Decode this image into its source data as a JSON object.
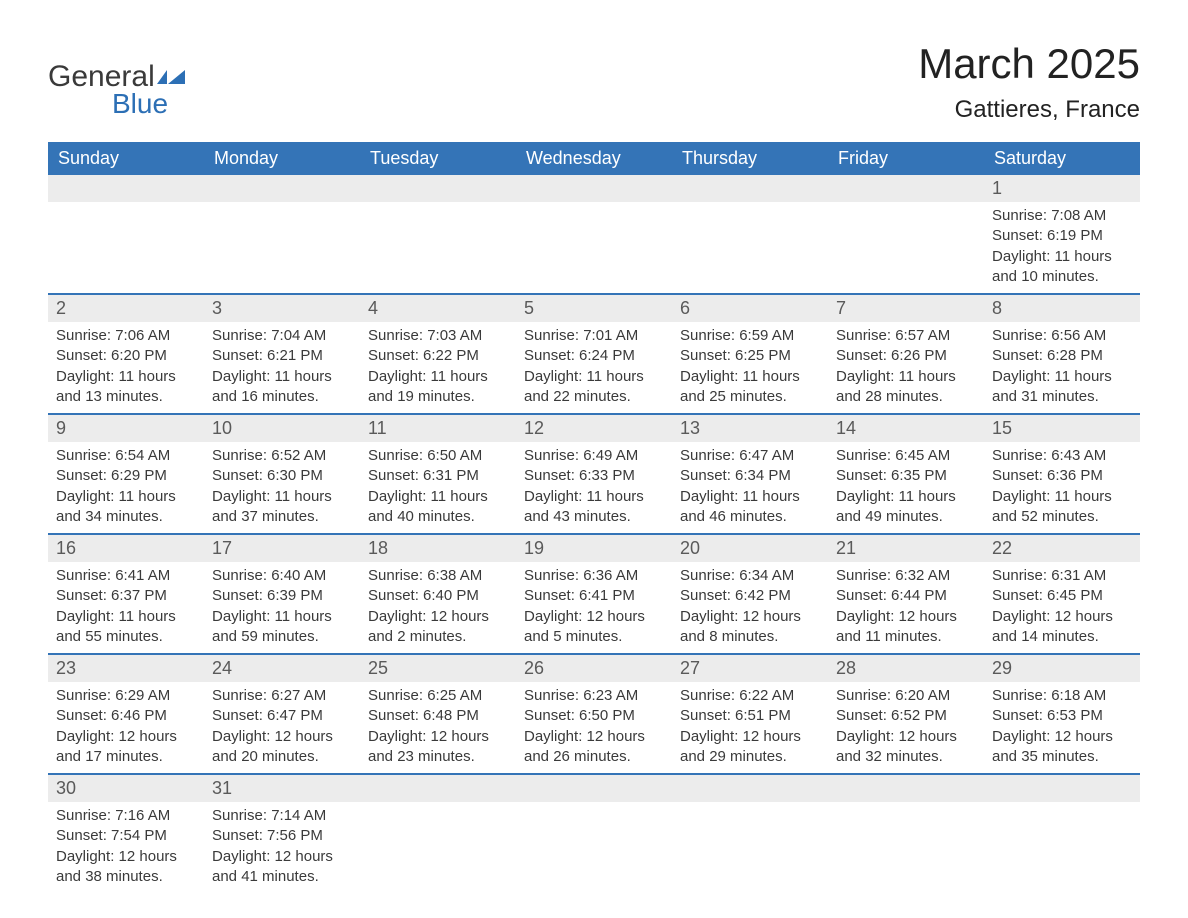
{
  "brand": {
    "text_general": "General",
    "text_blue": "Blue",
    "icon_color": "#2c6fb5"
  },
  "title": "March 2025",
  "location": "Gattieres, France",
  "colors": {
    "header_bg": "#3474b7",
    "header_text": "#ffffff",
    "daynum_bg": "#ececec",
    "daynum_text": "#5a5a5a",
    "body_text": "#3a3a3a",
    "row_divider": "#3474b7",
    "background": "#ffffff"
  },
  "typography": {
    "title_fontsize": 42,
    "location_fontsize": 24,
    "weekday_fontsize": 18,
    "daynum_fontsize": 18,
    "cell_fontsize": 15,
    "font_family": "Arial"
  },
  "weekdays": [
    "Sunday",
    "Monday",
    "Tuesday",
    "Wednesday",
    "Thursday",
    "Friday",
    "Saturday"
  ],
  "weeks": [
    [
      null,
      null,
      null,
      null,
      null,
      null,
      {
        "day": "1",
        "sunrise": "7:08 AM",
        "sunset": "6:19 PM",
        "daylight": "11 hours and 10 minutes."
      }
    ],
    [
      {
        "day": "2",
        "sunrise": "7:06 AM",
        "sunset": "6:20 PM",
        "daylight": "11 hours and 13 minutes."
      },
      {
        "day": "3",
        "sunrise": "7:04 AM",
        "sunset": "6:21 PM",
        "daylight": "11 hours and 16 minutes."
      },
      {
        "day": "4",
        "sunrise": "7:03 AM",
        "sunset": "6:22 PM",
        "daylight": "11 hours and 19 minutes."
      },
      {
        "day": "5",
        "sunrise": "7:01 AM",
        "sunset": "6:24 PM",
        "daylight": "11 hours and 22 minutes."
      },
      {
        "day": "6",
        "sunrise": "6:59 AM",
        "sunset": "6:25 PM",
        "daylight": "11 hours and 25 minutes."
      },
      {
        "day": "7",
        "sunrise": "6:57 AM",
        "sunset": "6:26 PM",
        "daylight": "11 hours and 28 minutes."
      },
      {
        "day": "8",
        "sunrise": "6:56 AM",
        "sunset": "6:28 PM",
        "daylight": "11 hours and 31 minutes."
      }
    ],
    [
      {
        "day": "9",
        "sunrise": "6:54 AM",
        "sunset": "6:29 PM",
        "daylight": "11 hours and 34 minutes."
      },
      {
        "day": "10",
        "sunrise": "6:52 AM",
        "sunset": "6:30 PM",
        "daylight": "11 hours and 37 minutes."
      },
      {
        "day": "11",
        "sunrise": "6:50 AM",
        "sunset": "6:31 PM",
        "daylight": "11 hours and 40 minutes."
      },
      {
        "day": "12",
        "sunrise": "6:49 AM",
        "sunset": "6:33 PM",
        "daylight": "11 hours and 43 minutes."
      },
      {
        "day": "13",
        "sunrise": "6:47 AM",
        "sunset": "6:34 PM",
        "daylight": "11 hours and 46 minutes."
      },
      {
        "day": "14",
        "sunrise": "6:45 AM",
        "sunset": "6:35 PM",
        "daylight": "11 hours and 49 minutes."
      },
      {
        "day": "15",
        "sunrise": "6:43 AM",
        "sunset": "6:36 PM",
        "daylight": "11 hours and 52 minutes."
      }
    ],
    [
      {
        "day": "16",
        "sunrise": "6:41 AM",
        "sunset": "6:37 PM",
        "daylight": "11 hours and 55 minutes."
      },
      {
        "day": "17",
        "sunrise": "6:40 AM",
        "sunset": "6:39 PM",
        "daylight": "11 hours and 59 minutes."
      },
      {
        "day": "18",
        "sunrise": "6:38 AM",
        "sunset": "6:40 PM",
        "daylight": "12 hours and 2 minutes."
      },
      {
        "day": "19",
        "sunrise": "6:36 AM",
        "sunset": "6:41 PM",
        "daylight": "12 hours and 5 minutes."
      },
      {
        "day": "20",
        "sunrise": "6:34 AM",
        "sunset": "6:42 PM",
        "daylight": "12 hours and 8 minutes."
      },
      {
        "day": "21",
        "sunrise": "6:32 AM",
        "sunset": "6:44 PM",
        "daylight": "12 hours and 11 minutes."
      },
      {
        "day": "22",
        "sunrise": "6:31 AM",
        "sunset": "6:45 PM",
        "daylight": "12 hours and 14 minutes."
      }
    ],
    [
      {
        "day": "23",
        "sunrise": "6:29 AM",
        "sunset": "6:46 PM",
        "daylight": "12 hours and 17 minutes."
      },
      {
        "day": "24",
        "sunrise": "6:27 AM",
        "sunset": "6:47 PM",
        "daylight": "12 hours and 20 minutes."
      },
      {
        "day": "25",
        "sunrise": "6:25 AM",
        "sunset": "6:48 PM",
        "daylight": "12 hours and 23 minutes."
      },
      {
        "day": "26",
        "sunrise": "6:23 AM",
        "sunset": "6:50 PM",
        "daylight": "12 hours and 26 minutes."
      },
      {
        "day": "27",
        "sunrise": "6:22 AM",
        "sunset": "6:51 PM",
        "daylight": "12 hours and 29 minutes."
      },
      {
        "day": "28",
        "sunrise": "6:20 AM",
        "sunset": "6:52 PM",
        "daylight": "12 hours and 32 minutes."
      },
      {
        "day": "29",
        "sunrise": "6:18 AM",
        "sunset": "6:53 PM",
        "daylight": "12 hours and 35 minutes."
      }
    ],
    [
      {
        "day": "30",
        "sunrise": "7:16 AM",
        "sunset": "7:54 PM",
        "daylight": "12 hours and 38 minutes."
      },
      {
        "day": "31",
        "sunrise": "7:14 AM",
        "sunset": "7:56 PM",
        "daylight": "12 hours and 41 minutes."
      },
      null,
      null,
      null,
      null,
      null
    ]
  ],
  "labels": {
    "sunrise_prefix": "Sunrise: ",
    "sunset_prefix": "Sunset: ",
    "daylight_prefix": "Daylight: "
  }
}
